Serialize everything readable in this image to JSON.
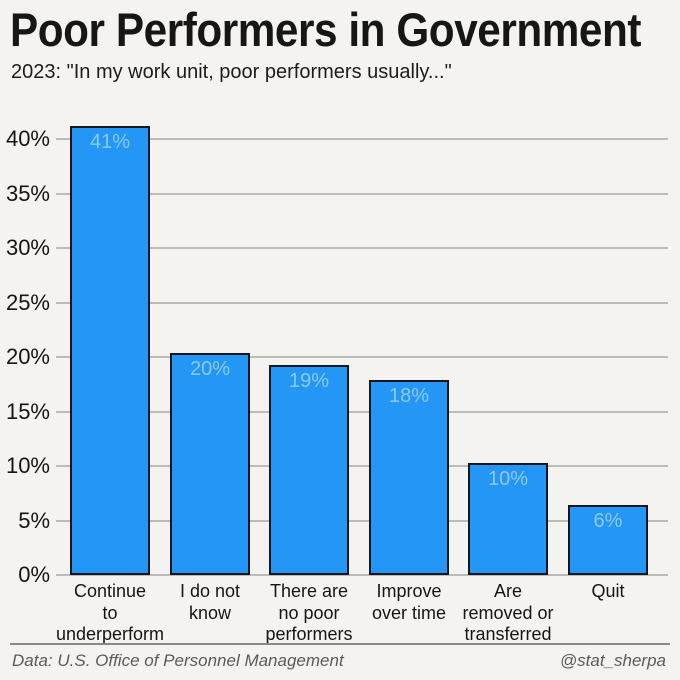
{
  "header": {
    "title": "Poor Performers in Government",
    "subtitle": "2023: \"In my work unit, poor performers usually...\""
  },
  "chart_data": {
    "type": "bar",
    "title": "Poor Performers in Government",
    "subtitle": "2023: \"In my work unit, poor performers usually...\"",
    "year": "2023",
    "categories": [
      "Continue to underperform",
      "I do not know",
      "There are no poor performers",
      "Improve over time",
      "Are removed or transferred",
      "Quit"
    ],
    "category_label_lines": [
      [
        "Continue",
        "to",
        "underperform"
      ],
      [
        "I do not",
        "know"
      ],
      [
        "There are",
        "no poor",
        "performers"
      ],
      [
        "Improve",
        "over time"
      ],
      [
        "Are",
        "removed or",
        "transferred"
      ],
      [
        "Quit"
      ]
    ],
    "values": [
      41,
      20,
      19,
      18,
      10,
      6
    ],
    "value_labels": [
      "41%",
      "20%",
      "19%",
      "18%",
      "10%",
      "6%"
    ],
    "bar_heights_pct": [
      41.2,
      20.4,
      19.3,
      17.9,
      10.3,
      6.4
    ],
    "ytick_values": [
      0,
      5,
      10,
      15,
      20,
      25,
      30,
      35,
      40
    ],
    "ytick_labels": [
      "0%",
      "5%",
      "10%",
      "15%",
      "20%",
      "25%",
      "30%",
      "35%",
      "40%"
    ],
    "ylim": [
      0,
      42.5
    ],
    "grid": true,
    "legend": false,
    "xlabel": "",
    "ylabel": "",
    "colors": {
      "bar_fill": "#2496f5",
      "bar_border": "#15151c",
      "bar_value_label": "#8ccaf8",
      "background": "#f5f3ef",
      "gridline": "#bdbbb7",
      "text": "#151515"
    }
  },
  "footer": {
    "source": "Data: U.S. Office of Personnel Management",
    "credit": "@stat_sherpa"
  }
}
